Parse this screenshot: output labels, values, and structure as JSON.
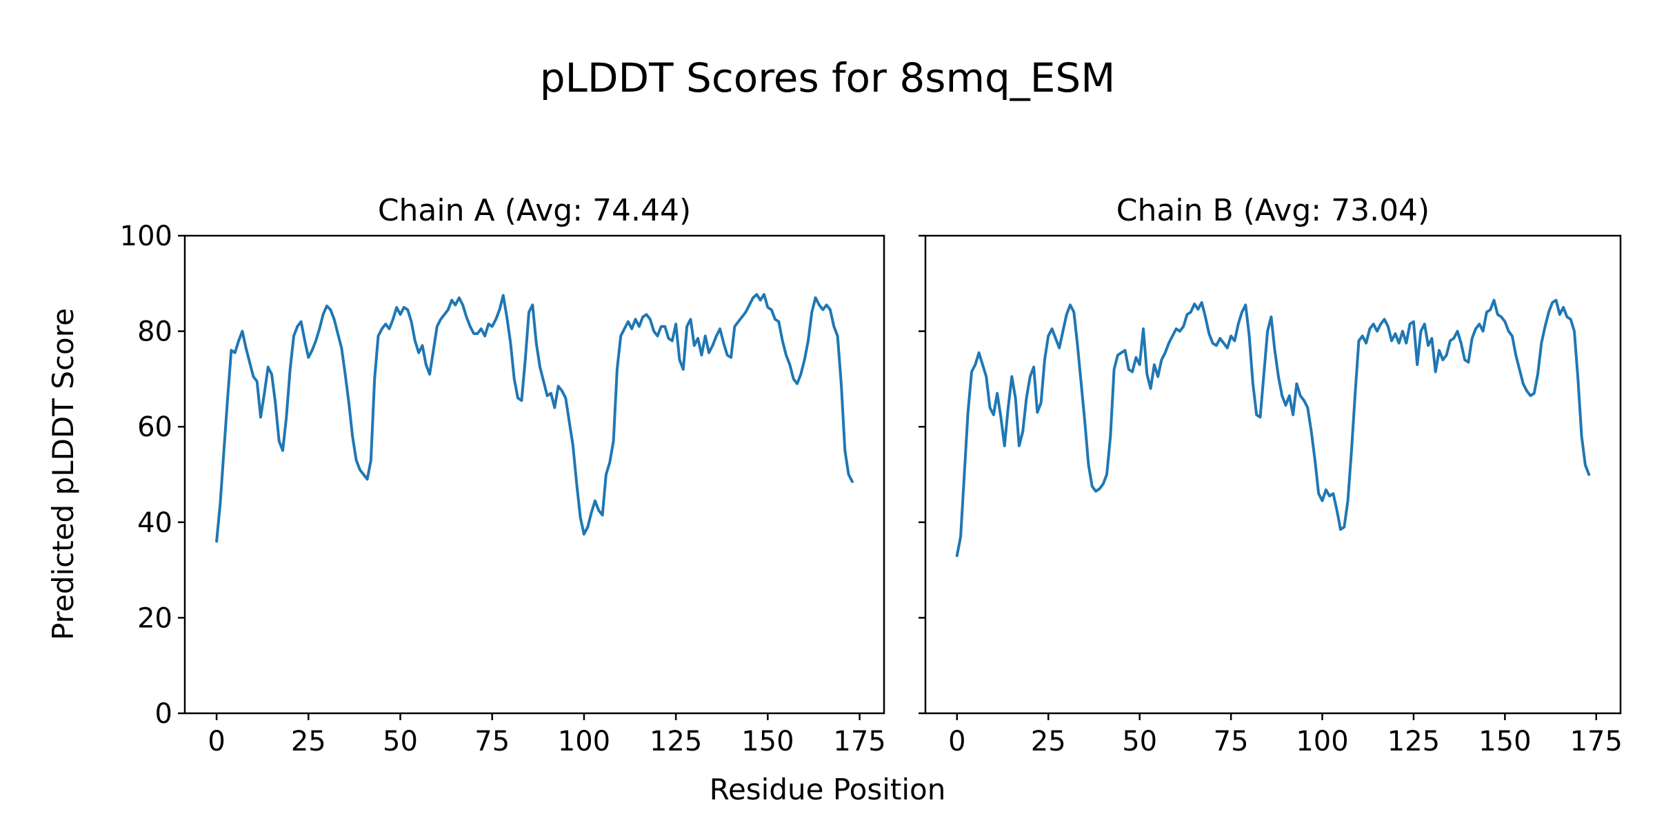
{
  "figure": {
    "title": "pLDDT Scores for 8smq_ESM",
    "xlabel": "Residue Position",
    "ylabel": "Predicted pLDDT Score",
    "background": "#ffffff",
    "line_color": "#1f77b4",
    "text_color": "#000000"
  },
  "chart_data": [
    {
      "type": "line",
      "title": "Chain A (Avg: 74.44)",
      "chain": "A",
      "avg": 74.44,
      "xlabel": "Residue Position",
      "ylabel": "Predicted pLDDT Score",
      "xlim": [
        -8.65,
        181.65
      ],
      "ylim": [
        0,
        100
      ],
      "xticks": [
        0,
        25,
        50,
        75,
        100,
        125,
        150,
        175
      ],
      "yticks": [
        0,
        20,
        40,
        60,
        80,
        100
      ],
      "show_ytick_labels": true,
      "grid": false,
      "legend": "none",
      "series": [
        {
          "name": "pLDDT Chain A",
          "color": "#1f77b4",
          "x_start": 0,
          "values": [
            36,
            44,
            55,
            66,
            76,
            75.5,
            78,
            80,
            76.5,
            73.5,
            70.5,
            69.5,
            62,
            67,
            72.5,
            71,
            65,
            57,
            55,
            62,
            72,
            79,
            81,
            82,
            78,
            74.5,
            76,
            78,
            80.5,
            83.5,
            85.3,
            84.5,
            82.5,
            79.5,
            76.5,
            71,
            65,
            58,
            53,
            51,
            50,
            49,
            53,
            70,
            79,
            80.5,
            81.5,
            80.5,
            82.5,
            85,
            83.5,
            85,
            84.5,
            82,
            78,
            75.5,
            77,
            73,
            71,
            76,
            81,
            82.5,
            83.5,
            84.5,
            86.5,
            85.5,
            87,
            85.5,
            83,
            81,
            79.5,
            79.5,
            80.5,
            79,
            81.5,
            81,
            82.5,
            84.5,
            87.5,
            83,
            77.5,
            70,
            66,
            65.5,
            74,
            84,
            85.5,
            77.5,
            72.5,
            69.5,
            66.5,
            67,
            64,
            68.5,
            67.5,
            66,
            61,
            56,
            48,
            41,
            37.5,
            39,
            42,
            44.5,
            42.5,
            41.5,
            50,
            52.5,
            57,
            72,
            79,
            80.5,
            82,
            80.5,
            82.5,
            81,
            83,
            83.5,
            82.5,
            80,
            79,
            81,
            81,
            78.5,
            78,
            81.5,
            74,
            72,
            81,
            82.5,
            77,
            78.5,
            75,
            79,
            75.5,
            77,
            79,
            80.5,
            77.5,
            75,
            74.5,
            81,
            82,
            83,
            84,
            85.5,
            87,
            87.7,
            86.5,
            87.7,
            85,
            84.5,
            82.5,
            82,
            78,
            75,
            73,
            70,
            69,
            71,
            74,
            78,
            84,
            87,
            85.5,
            84.5,
            85.5,
            84.5,
            81,
            79,
            69,
            55,
            50,
            48.5
          ]
        }
      ]
    },
    {
      "type": "line",
      "title": "Chain B (Avg: 73.04)",
      "chain": "B",
      "avg": 73.04,
      "xlabel": "Residue Position",
      "ylabel": "Predicted pLDDT Score",
      "xlim": [
        -8.65,
        181.65
      ],
      "ylim": [
        0,
        100
      ],
      "xticks": [
        0,
        25,
        50,
        75,
        100,
        125,
        150,
        175
      ],
      "yticks": [
        0,
        20,
        40,
        60,
        80,
        100
      ],
      "show_ytick_labels": false,
      "grid": false,
      "legend": "none",
      "series": [
        {
          "name": "pLDDT Chain B",
          "color": "#1f77b4",
          "x_start": 0,
          "values": [
            33,
            37,
            50,
            63,
            71.5,
            73,
            75.5,
            73,
            70.5,
            64,
            62.5,
            67,
            62,
            56,
            64,
            70.5,
            66,
            56,
            59,
            66,
            70.5,
            72.5,
            63,
            65,
            74,
            79,
            80.5,
            78.5,
            76.5,
            80,
            83.5,
            85.5,
            84,
            77,
            69,
            61,
            52,
            47.5,
            46.5,
            47,
            48,
            50,
            58,
            72,
            75,
            75.5,
            76,
            72,
            71.5,
            74.5,
            73,
            80.5,
            71,
            68,
            73,
            70.5,
            74,
            75.5,
            77.5,
            79,
            80.5,
            80,
            81,
            83.5,
            84,
            85.7,
            84.6,
            86,
            83,
            79.5,
            77.5,
            77,
            78.5,
            77.5,
            76.5,
            79,
            78,
            81.5,
            84,
            85.5,
            79,
            69,
            62.5,
            62,
            71,
            80,
            83,
            76,
            70.5,
            66.5,
            64.5,
            66.5,
            62.5,
            69,
            66.5,
            65.5,
            64,
            59,
            53,
            46,
            44.5,
            46.8,
            45.5,
            46,
            42.5,
            38.5,
            39,
            44.5,
            55,
            67,
            78,
            79,
            77.5,
            80.5,
            81.5,
            80,
            81.5,
            82.5,
            81,
            78,
            79.5,
            77.5,
            80,
            77.5,
            81.5,
            82,
            73,
            80,
            81.5,
            77,
            78.5,
            71.5,
            76,
            74,
            75,
            78,
            78.5,
            80,
            77.5,
            74,
            73.5,
            78.5,
            80.5,
            81.5,
            80,
            84,
            84.5,
            86.5,
            83.5,
            83,
            82,
            80,
            79,
            75,
            72,
            69,
            67.5,
            66.5,
            67,
            71,
            77.5,
            81,
            84,
            86,
            86.5,
            83.5,
            85,
            83,
            82.5,
            80,
            70,
            58,
            52,
            50
          ]
        }
      ]
    }
  ]
}
